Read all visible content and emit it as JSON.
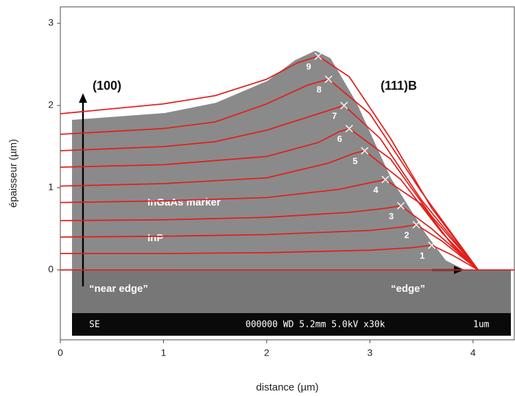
{
  "chart_data": {
    "type": "line",
    "x_label": "distance (µm)",
    "y_label": "épaisseur (µm)",
    "xlim": [
      0,
      4.4
    ],
    "xticks": [
      0,
      1,
      2,
      3,
      4
    ],
    "ylim": [
      -0.85,
      3.2
    ],
    "yticks": [
      0,
      1,
      2,
      3
    ],
    "color": "#e0201c",
    "annotations": {
      "plane_100": "(100)",
      "plane_111b": "(111)B",
      "marker": "InGaAs marker",
      "inp": "InP",
      "near_edge": "“near edge”",
      "edge": "“edge”",
      "sem_mode": "SE",
      "sem_info": "000000 WD 5.2mm  5.0kV x30k",
      "sem_scale": "1um"
    },
    "series": [
      {
        "x": [
          0,
          4.4
        ],
        "values": [
          0,
          0
        ]
      },
      {
        "name": "1",
        "x": [
          0,
          1,
          2,
          3,
          3.4,
          3.6,
          3.8,
          4.05
        ],
        "values": [
          0.2,
          0.2,
          0.21,
          0.24,
          0.27,
          0.3,
          0.18,
          0
        ]
      },
      {
        "name": "2",
        "x": [
          0,
          1,
          2,
          3,
          3.3,
          3.45,
          3.7,
          4.05
        ],
        "values": [
          0.4,
          0.41,
          0.43,
          0.48,
          0.52,
          0.55,
          0.35,
          0
        ]
      },
      {
        "name": "3",
        "x": [
          0,
          1,
          2,
          2.8,
          3.15,
          3.3,
          3.6,
          4.05
        ],
        "values": [
          0.6,
          0.61,
          0.64,
          0.7,
          0.75,
          0.78,
          0.5,
          0
        ]
      },
      {
        "name": "4",
        "x": [
          0,
          1,
          2,
          2.7,
          3.0,
          3.15,
          3.5,
          3.8,
          4.05
        ],
        "values": [
          0.82,
          0.84,
          0.88,
          0.98,
          1.06,
          1.1,
          0.8,
          0.3,
          0
        ]
      },
      {
        "name": "5",
        "x": [
          0,
          1,
          2,
          2.6,
          2.85,
          2.95,
          3.3,
          3.7,
          4.05
        ],
        "values": [
          1.02,
          1.05,
          1.12,
          1.3,
          1.42,
          1.45,
          1.1,
          0.45,
          0
        ]
      },
      {
        "name": "6",
        "x": [
          0,
          1,
          2,
          2.5,
          2.7,
          2.8,
          3.2,
          3.6,
          4.05
        ],
        "values": [
          1.25,
          1.28,
          1.38,
          1.55,
          1.68,
          1.72,
          1.35,
          0.65,
          0
        ]
      },
      {
        "name": "7",
        "x": [
          0,
          1,
          1.5,
          2,
          2.5,
          2.75,
          3.1,
          3.5,
          4.05
        ],
        "values": [
          1.45,
          1.5,
          1.56,
          1.7,
          1.9,
          2.0,
          1.6,
          0.85,
          0
        ]
      },
      {
        "name": "8",
        "x": [
          0,
          1,
          1.5,
          2,
          2.4,
          2.6,
          3.0,
          3.5,
          4.05
        ],
        "values": [
          1.65,
          1.72,
          1.8,
          2.02,
          2.25,
          2.32,
          1.9,
          0.95,
          0
        ]
      },
      {
        "name": "9",
        "x": [
          0,
          1,
          1.5,
          2,
          2.3,
          2.5,
          2.8,
          3.2,
          3.6,
          4.05
        ],
        "values": [
          1.9,
          2.02,
          2.12,
          2.32,
          2.52,
          2.6,
          2.35,
          1.6,
          0.75,
          0
        ]
      }
    ]
  }
}
